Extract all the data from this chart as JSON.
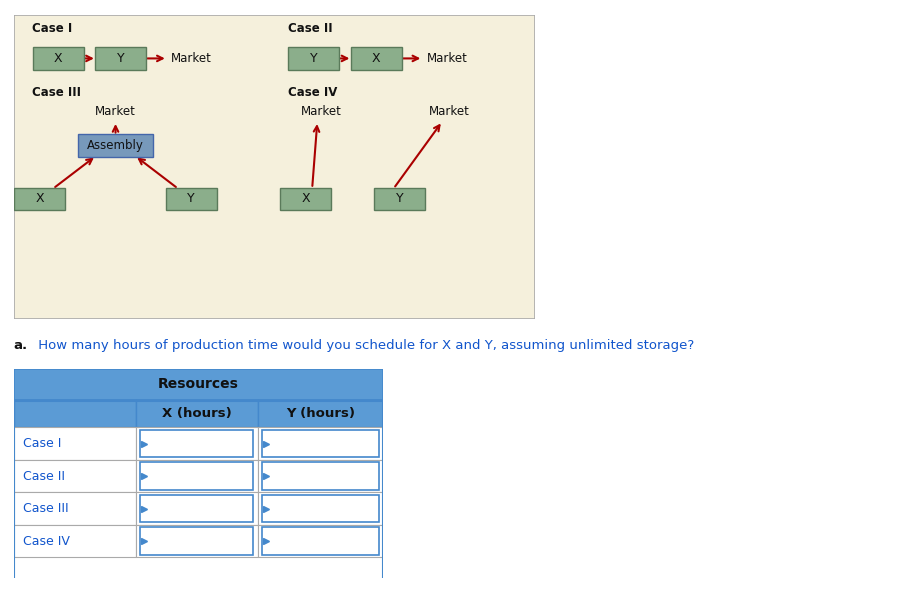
{
  "diagram_bg": "#F5F0DC",
  "box_face": "#8BAE8B",
  "box_edge": "#5A7A5A",
  "assembly_face": "#7799BB",
  "assembly_edge": "#4466AA",
  "arrow_color": "#AA0000",
  "text_color": "#222222",
  "question_color": "#1155CC",
  "question_bold": "a.",
  "question_rest": " How many hours of production time would you schedule for X and Y, assuming unlimited storage?",
  "table_hdr_color": "#5B9BD5",
  "table_border": "#4488CC",
  "table_white": "#FFFFFF",
  "case_labels": [
    "Case I",
    "Case II",
    "Case III",
    "Case IV"
  ],
  "col_headers": [
    "X (hours)",
    "Y (hours)"
  ]
}
